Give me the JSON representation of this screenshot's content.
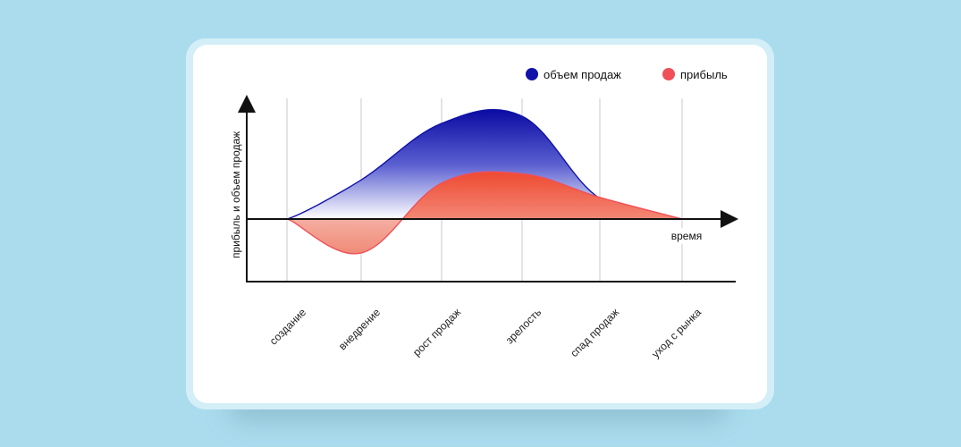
{
  "chart_data": {
    "type": "area",
    "xlabel": "время",
    "ylabel": "прибыль и объем продаж",
    "categories": [
      "создание",
      "внедрение",
      "рост продаж",
      "зрелость",
      "спад продаж",
      "уход с рынка"
    ],
    "x": [
      0,
      1,
      2,
      3,
      4,
      5
    ],
    "series": [
      {
        "name": "объем продаж",
        "color": "#0f13a8",
        "values": [
          0,
          0.38,
          0.93,
          1.0,
          0.2,
          0
        ]
      },
      {
        "name": "прибыль",
        "color": "#f04f58",
        "values": [
          0,
          -0.33,
          0.35,
          0.44,
          0.21,
          0
        ]
      }
    ],
    "ylim": [
      -0.6,
      1.2
    ],
    "grid": "vertical",
    "legend": "top-right"
  }
}
